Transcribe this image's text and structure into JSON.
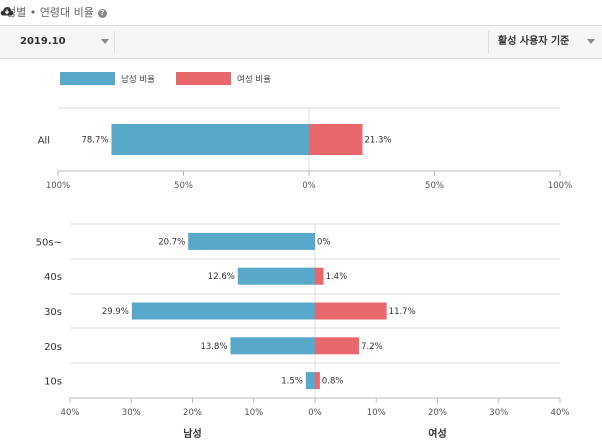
{
  "header": {
    "title": "성별 • 연령대 비율",
    "help_glyph": "?"
  },
  "toolbar": {
    "period": "2019.10",
    "basis": "활성 사용자 기준"
  },
  "colors": {
    "male": "#57a8c9",
    "female": "#e8676b",
    "grid": "#dddddd",
    "axis": "#bbbbbb"
  },
  "legend": {
    "male": "남성 비율",
    "female": "여성 비율"
  },
  "chart_data": [
    {
      "type": "bar",
      "orientation": "horizontal-diverging",
      "categories": [
        "All"
      ],
      "series": [
        {
          "name": "남성 비율",
          "values": [
            78.7
          ]
        },
        {
          "name": "여성 비율",
          "values": [
            21.3
          ]
        }
      ],
      "xlim": [
        -100,
        100
      ],
      "xticks": [
        -100,
        -50,
        0,
        50,
        100
      ],
      "xtick_labels": [
        "100%",
        "50%",
        "0%",
        "50%",
        "100%"
      ],
      "grid": true
    },
    {
      "type": "bar",
      "orientation": "horizontal-diverging",
      "categories": [
        "50s~",
        "40s",
        "30s",
        "20s",
        "10s"
      ],
      "series": [
        {
          "name": "남성",
          "values": [
            20.7,
            12.6,
            29.9,
            13.8,
            1.5
          ]
        },
        {
          "name": "여성",
          "values": [
            0,
            1.4,
            11.7,
            7.2,
            0.8
          ]
        }
      ],
      "xlim": [
        -40,
        40
      ],
      "xticks": [
        -40,
        -30,
        -20,
        -10,
        0,
        10,
        20,
        30,
        40
      ],
      "xtick_labels": [
        "40%",
        "30%",
        "20%",
        "10%",
        "0%",
        "10%",
        "20%",
        "30%",
        "40%"
      ],
      "xlabel_left": "남성",
      "xlabel_right": "여성",
      "grid": true
    }
  ]
}
